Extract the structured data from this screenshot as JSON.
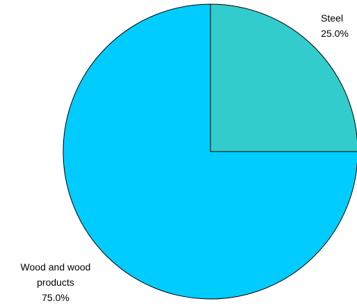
{
  "chart_data": {
    "type": "pie",
    "title": "",
    "start_angle": "12 o'clock, clockwise",
    "slices": [
      {
        "label": "Steel",
        "percent_label": "25.0%",
        "value": 25.0,
        "color": "#33CCCC"
      },
      {
        "label": "Wood and wood products",
        "percent_label": "75.0%",
        "value": 75.0,
        "color": "#00CCFF"
      }
    ],
    "edge_color": "#000000",
    "legend": "none"
  }
}
